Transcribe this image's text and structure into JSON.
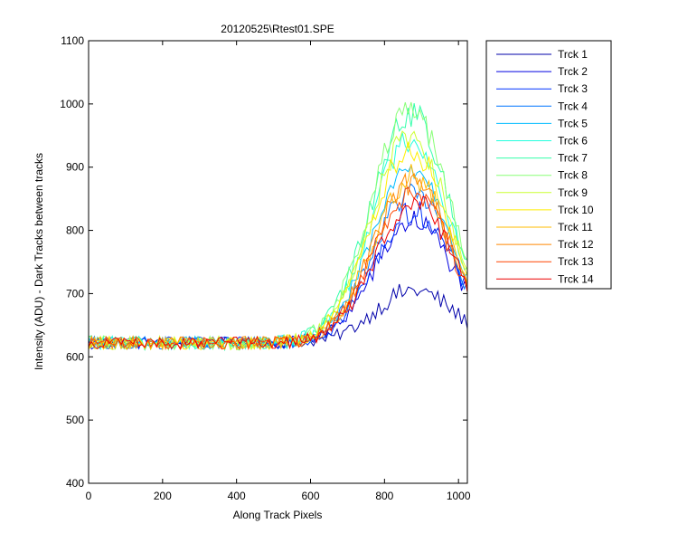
{
  "chart_data": {
    "type": "line",
    "title": "20120525\\Rtest01.SPE",
    "xlabel": "Along Track Pixels",
    "ylabel": "Intensity (ADU) - Dark Tracks between tracks",
    "xlim": [
      0,
      1024
    ],
    "ylim": [
      400,
      1100
    ],
    "xticks": [
      0,
      200,
      400,
      600,
      800,
      1000
    ],
    "yticks": [
      400,
      500,
      600,
      700,
      800,
      900,
      1000,
      1100
    ],
    "grid": false,
    "legend_position": "outside-right",
    "x_step": 8,
    "series": [
      {
        "name": "Trck 1",
        "color": "#0000aa",
        "baseline": 622,
        "peak": 705,
        "center": 880,
        "width": 150,
        "noise": 14
      },
      {
        "name": "Trck 2",
        "color": "#0000e0",
        "baseline": 622,
        "peak": 815,
        "center": 880,
        "width": 150,
        "noise": 16
      },
      {
        "name": "Trck 3",
        "color": "#0033ff",
        "baseline": 622,
        "peak": 830,
        "center": 880,
        "width": 150,
        "noise": 16
      },
      {
        "name": "Trck 4",
        "color": "#0077ff",
        "baseline": 622,
        "peak": 860,
        "center": 875,
        "width": 150,
        "noise": 17
      },
      {
        "name": "Trck 5",
        "color": "#00bbff",
        "baseline": 622,
        "peak": 900,
        "center": 875,
        "width": 150,
        "noise": 18
      },
      {
        "name": "Trck 6",
        "color": "#22ffdd",
        "baseline": 622,
        "peak": 945,
        "center": 870,
        "width": 150,
        "noise": 18
      },
      {
        "name": "Trck 7",
        "color": "#33ffaa",
        "baseline": 622,
        "peak": 985,
        "center": 870,
        "width": 150,
        "noise": 19
      },
      {
        "name": "Trck 8",
        "color": "#88ff77",
        "baseline": 622,
        "peak": 990,
        "center": 870,
        "width": 150,
        "noise": 19
      },
      {
        "name": "Trck 9",
        "color": "#ccff33",
        "baseline": 622,
        "peak": 950,
        "center": 870,
        "width": 150,
        "noise": 18
      },
      {
        "name": "Trck 10",
        "color": "#ffee00",
        "baseline": 622,
        "peak": 930,
        "center": 870,
        "width": 150,
        "noise": 18
      },
      {
        "name": "Trck 11",
        "color": "#ffbb00",
        "baseline": 622,
        "peak": 885,
        "center": 875,
        "width": 150,
        "noise": 17
      },
      {
        "name": "Trck 12",
        "color": "#ff8800",
        "baseline": 622,
        "peak": 875,
        "center": 875,
        "width": 150,
        "noise": 17
      },
      {
        "name": "Trck 13",
        "color": "#ff4400",
        "baseline": 622,
        "peak": 860,
        "center": 875,
        "width": 150,
        "noise": 17
      },
      {
        "name": "Trck 14",
        "color": "#ee0000",
        "baseline": 622,
        "peak": 845,
        "center": 880,
        "width": 150,
        "noise": 16
      }
    ]
  }
}
